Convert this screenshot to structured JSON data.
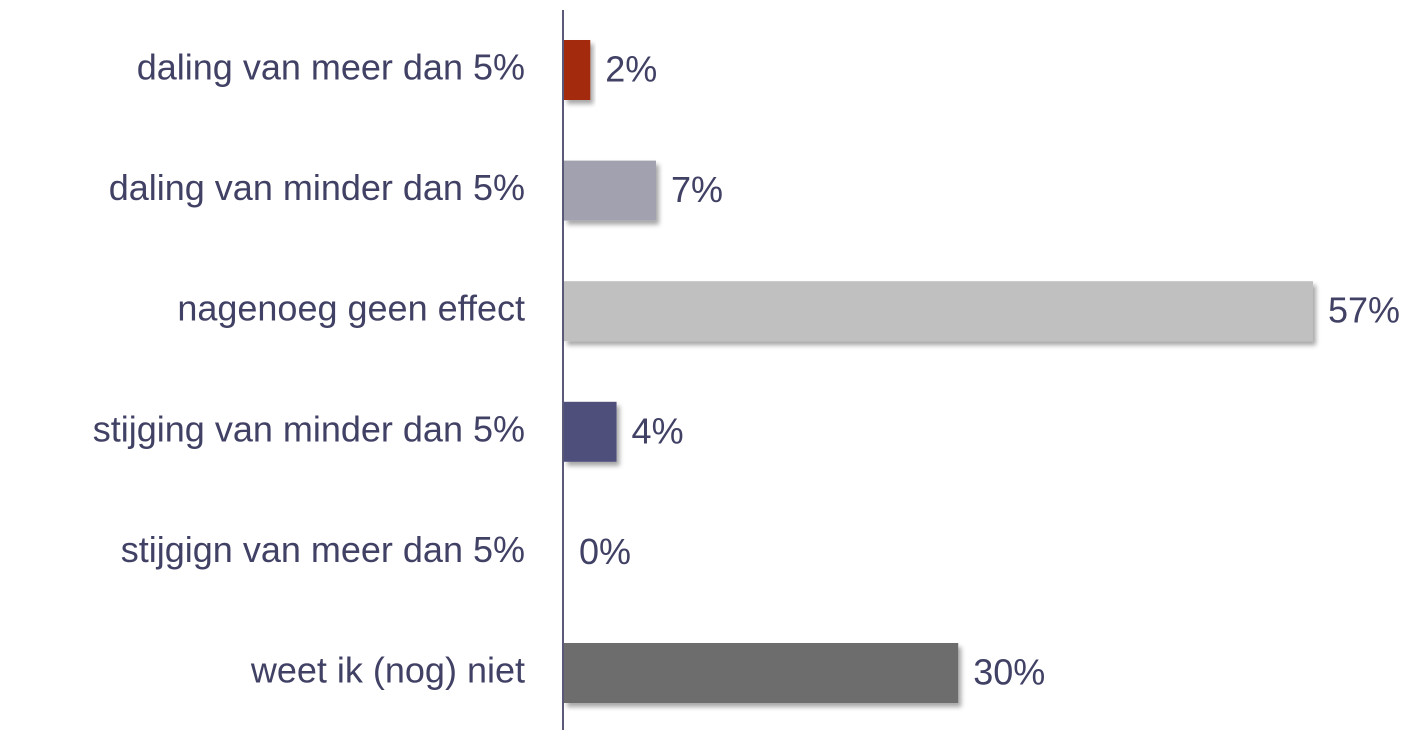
{
  "chart_data": {
    "type": "barh",
    "categories": [
      "daling van meer dan 5%",
      "daling van minder dan 5%",
      "nagenoeg geen effect",
      "stijging van minder dan 5%",
      "stijgign van meer dan 5%",
      "weet ik (nog) niet"
    ],
    "values": [
      2,
      7,
      57,
      4,
      0,
      30
    ],
    "value_labels": [
      "2%",
      "7%",
      "57%",
      "4%",
      "0%",
      "30%"
    ],
    "colors": [
      "#a32a08",
      "#a1a1af",
      "#c0c0c0",
      "#50507c",
      null,
      "#6d6d6d"
    ]
  }
}
